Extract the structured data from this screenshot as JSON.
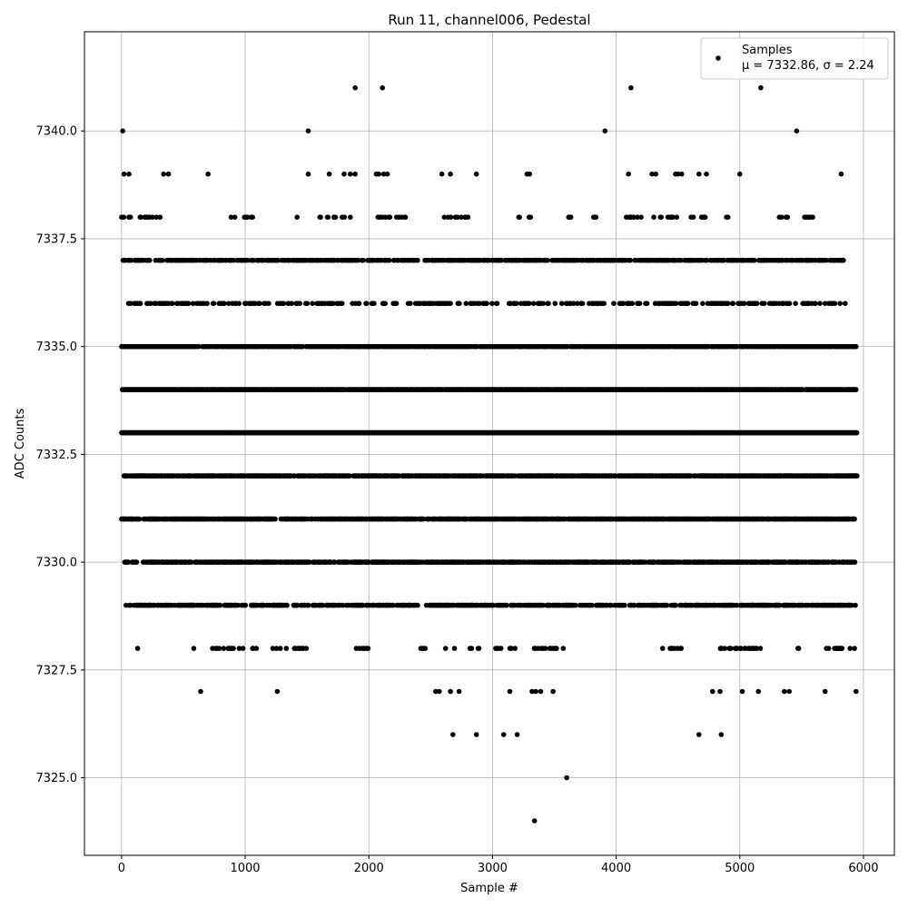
{
  "chart_data": {
    "type": "scatter",
    "title": "Run 11, channel006, Pedestal",
    "xlabel": "Sample #",
    "ylabel": "ADC Counts",
    "xlim": [
      -300,
      6250
    ],
    "ylim": [
      7323.2,
      7342.3
    ],
    "xticks": [
      0,
      1000,
      2000,
      3000,
      4000,
      5000,
      6000
    ],
    "xtick_labels": [
      "0",
      "1000",
      "2000",
      "3000",
      "4000",
      "5000",
      "6000"
    ],
    "yticks": [
      7325.0,
      7327.5,
      7330.0,
      7332.5,
      7335.0,
      7337.5,
      7340.0
    ],
    "ytick_labels": [
      "7325.0",
      "7327.5",
      "7330.0",
      "7332.5",
      "7335.0",
      "7337.5",
      "7340.0"
    ],
    "grid": true,
    "legend": {
      "position": "top-right",
      "entries": [
        {
          "series": "Samples",
          "line1": "Samples",
          "line2": "μ = 7332.86, σ = 2.24"
        }
      ]
    },
    "series": [
      {
        "name": "Samples",
        "color": "#000000",
        "marker": "circle",
        "sample_range": [
          0,
          5940
        ],
        "mean": 7332.86,
        "sigma": 2.24,
        "points": [
          [
            10,
            7340
          ],
          [
            1510,
            7340
          ],
          [
            3910,
            7340
          ],
          [
            5460,
            7340
          ],
          [
            1890,
            7341
          ],
          [
            2110,
            7341
          ],
          [
            4120,
            7341
          ],
          [
            5170,
            7341
          ],
          [
            3340,
            7324
          ],
          [
            3600,
            7325
          ],
          [
            2680,
            7326
          ],
          [
            2870,
            7326
          ],
          [
            3090,
            7326
          ],
          [
            3200,
            7326
          ],
          [
            4670,
            7326
          ],
          [
            4850,
            7326
          ],
          [
            640,
            7327
          ],
          [
            1260,
            7327
          ],
          [
            2540,
            7327
          ],
          [
            2570,
            7327
          ],
          [
            2660,
            7327
          ],
          [
            2730,
            7327
          ],
          [
            3140,
            7327
          ],
          [
            3320,
            7327
          ],
          [
            3350,
            7327
          ],
          [
            3390,
            7327
          ],
          [
            3490,
            7327
          ],
          [
            4780,
            7327
          ],
          [
            4840,
            7327
          ],
          [
            5020,
            7327
          ],
          [
            5150,
            7327
          ],
          [
            5360,
            7327
          ],
          [
            5400,
            7327
          ],
          [
            5690,
            7327
          ],
          [
            5940,
            7327
          ],
          [
            20,
            7339
          ],
          [
            60,
            7339
          ],
          [
            340,
            7339
          ],
          [
            380,
            7339
          ],
          [
            700,
            7339
          ],
          [
            1510,
            7339
          ],
          [
            1680,
            7339
          ],
          [
            1800,
            7339
          ],
          [
            1850,
            7339
          ],
          [
            1890,
            7339
          ],
          [
            2060,
            7339
          ],
          [
            2080,
            7339
          ],
          [
            2120,
            7339
          ],
          [
            2150,
            7339
          ],
          [
            2590,
            7339
          ],
          [
            2660,
            7339
          ],
          [
            2870,
            7339
          ],
          [
            3280,
            7339
          ],
          [
            3300,
            7339
          ],
          [
            4100,
            7339
          ],
          [
            4290,
            7339
          ],
          [
            4320,
            7339
          ],
          [
            4480,
            7339
          ],
          [
            4500,
            7339
          ],
          [
            4530,
            7339
          ],
          [
            4670,
            7339
          ],
          [
            4730,
            7339
          ],
          [
            5000,
            7339
          ],
          [
            5820,
            7339
          ]
        ],
        "band_coverage": [
          {
            "value": 7338,
            "segments": [
              [
                0,
                100
              ],
              [
                150,
                330
              ],
              [
                470,
                480
              ],
              [
                660,
                670
              ],
              [
                880,
                1080
              ],
              [
                1420,
                1480
              ],
              [
                1580,
                1850
              ],
              [
                2050,
                2300
              ],
              [
                2580,
                2820
              ],
              [
                3200,
                3310
              ],
              [
                3470,
                3490
              ],
              [
                3610,
                3650
              ],
              [
                3800,
                3840
              ],
              [
                4010,
                4500
              ],
              [
                4600,
                4740
              ],
              [
                4880,
                4940
              ],
              [
                5100,
                5110
              ],
              [
                5320,
                5400
              ],
              [
                5500,
                5620
              ]
            ],
            "density": 0.25
          },
          {
            "value": 7337,
            "segments": [
              [
                0,
                5840
              ]
            ],
            "density": 0.5
          },
          {
            "value": 7336,
            "segments": [
              [
                50,
                5860
              ]
            ],
            "density": 0.3
          },
          {
            "value": 7335,
            "segments": [
              [
                0,
                5940
              ]
            ],
            "density": 0.75
          },
          {
            "value": 7334,
            "segments": [
              [
                0,
                5950
              ]
            ],
            "density": 0.95
          },
          {
            "value": 7333,
            "segments": [
              [
                0,
                5950
              ]
            ],
            "density": 1.0
          },
          {
            "value": 7332,
            "segments": [
              [
                20,
                5950
              ]
            ],
            "density": 0.75
          },
          {
            "value": 7331,
            "segments": [
              [
                0,
                5950
              ]
            ],
            "density": 0.75
          },
          {
            "value": 7330,
            "segments": [
              [
                20,
                5940
              ]
            ],
            "density": 0.7
          },
          {
            "value": 7329,
            "segments": [
              [
                30,
                5940
              ]
            ],
            "density": 0.55
          },
          {
            "value": 7328,
            "segments": [
              [
                130,
                160
              ],
              [
                560,
                590
              ],
              [
                700,
                1140
              ],
              [
                1200,
                1500
              ],
              [
                1880,
                2000
              ],
              [
                2390,
                2470
              ],
              [
                2620,
                2890
              ],
              [
                2990,
                3210
              ],
              [
                3320,
                3580
              ],
              [
                3870,
                3880
              ],
              [
                4370,
                4530
              ],
              [
                4800,
                5180
              ],
              [
                5440,
                5540
              ],
              [
                5700,
                5950
              ]
            ],
            "density": 0.25
          }
        ]
      }
    ]
  }
}
